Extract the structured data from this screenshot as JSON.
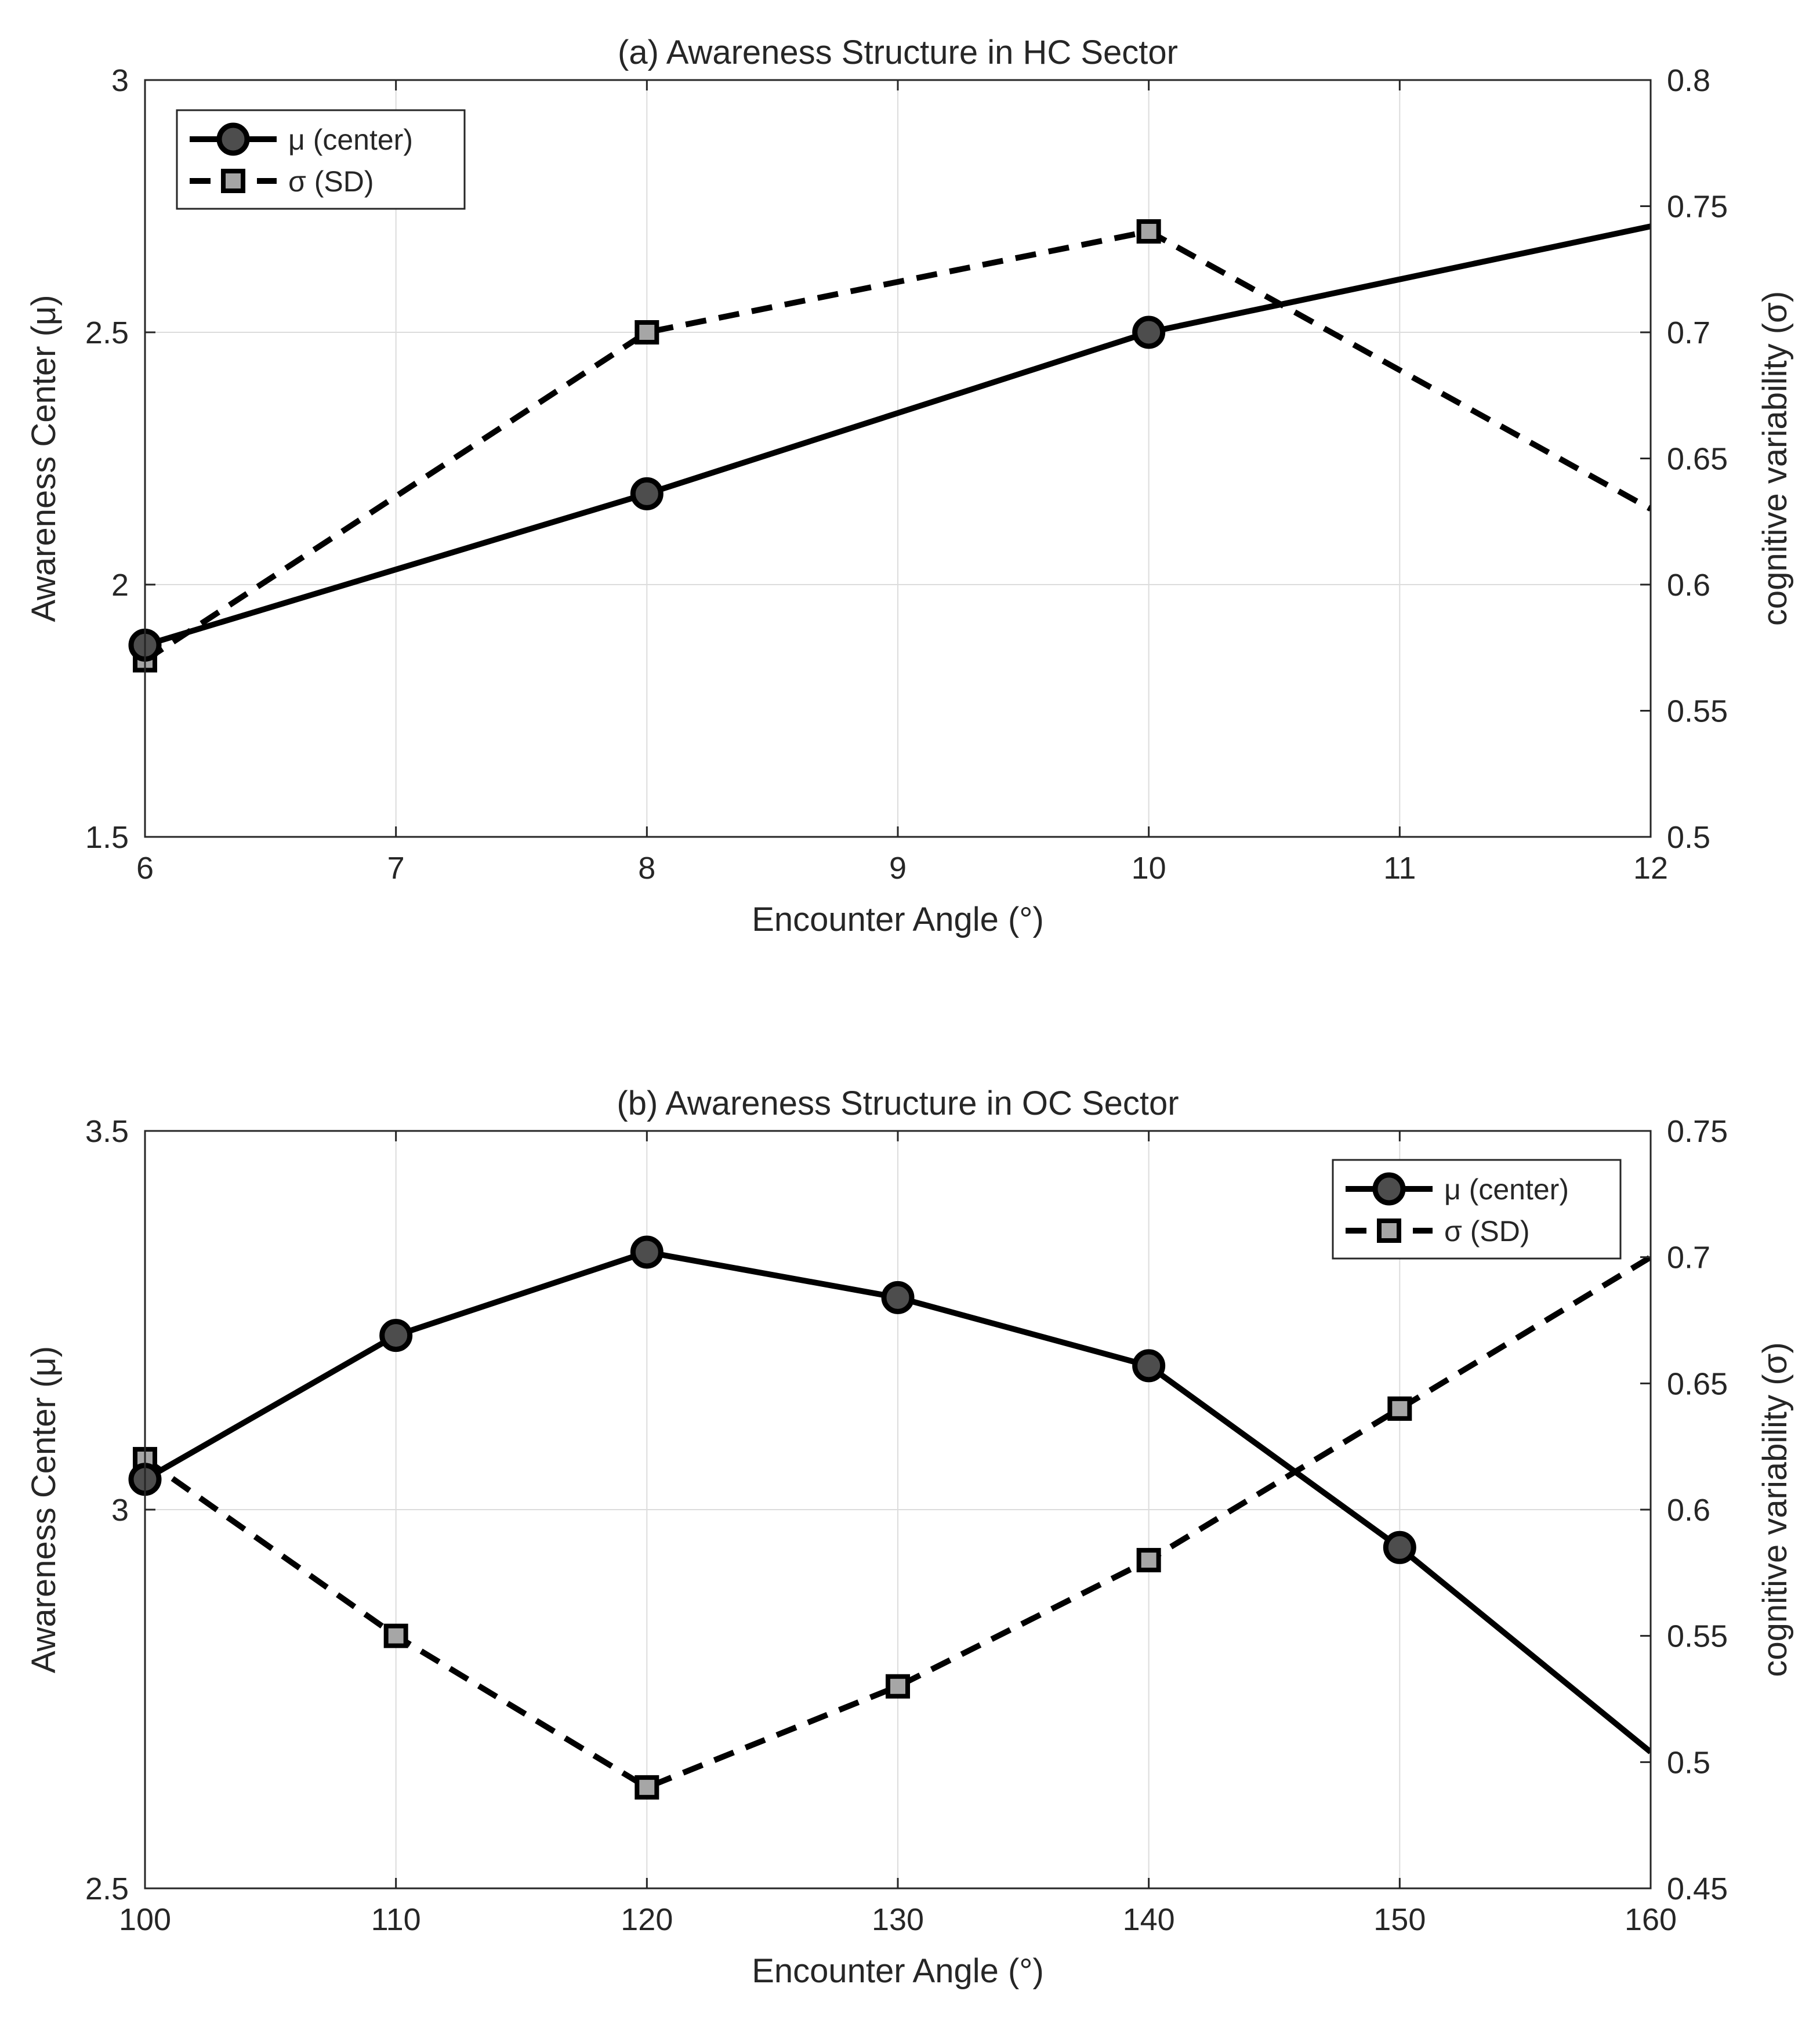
{
  "chart_data": [
    {
      "type": "line",
      "title": "(a) Awareness Structure in HC Sector",
      "xlabel": "Encounter Angle (°)",
      "ylabel_left": "Awareness Center (μ)",
      "ylabel_right": "cognitive variability (σ)",
      "xlim": [
        6,
        12
      ],
      "xticks": [
        6,
        7,
        8,
        9,
        10,
        11,
        12
      ],
      "ylim_left": [
        1.5,
        3
      ],
      "yticks_left": [
        1.5,
        2,
        2.5,
        3
      ],
      "ylim_right": [
        0.5,
        0.8
      ],
      "yticks_right": [
        0.5,
        0.55,
        0.6,
        0.65,
        0.7,
        0.75,
        0.8
      ],
      "grid": true,
      "legend_position": "top-left",
      "series": [
        {
          "name": "μ (center)",
          "axis": "left",
          "style": "solid",
          "marker": "circle",
          "x": [
            6,
            8,
            10,
            12
          ],
          "values": [
            1.88,
            2.18,
            2.5,
            2.71
          ],
          "marked": [
            true,
            true,
            true,
            false
          ]
        },
        {
          "name": "σ (SD)",
          "axis": "right",
          "style": "dashed",
          "marker": "square",
          "x": [
            6,
            8,
            10,
            12
          ],
          "values": [
            0.57,
            0.7,
            0.74,
            0.63
          ],
          "marked": [
            true,
            true,
            true,
            false
          ]
        }
      ]
    },
    {
      "type": "line",
      "title": "(b) Awareness Structure in OC Sector",
      "xlabel": "Encounter Angle (°)",
      "ylabel_left": "Awareness Center (μ)",
      "ylabel_right": "cognitive variability (σ)",
      "xlim": [
        100,
        160
      ],
      "xticks": [
        100,
        110,
        120,
        130,
        140,
        150,
        160
      ],
      "ylim_left": [
        2.5,
        3.5
      ],
      "yticks_left": [
        2.5,
        3,
        3.5
      ],
      "ylim_right": [
        0.45,
        0.75
      ],
      "yticks_right": [
        0.45,
        0.5,
        0.55,
        0.6,
        0.65,
        0.7,
        0.75
      ],
      "grid": true,
      "legend_position": "top-right",
      "series": [
        {
          "name": "μ (center)",
          "axis": "left",
          "style": "solid",
          "marker": "circle",
          "x": [
            100,
            110,
            120,
            130,
            140,
            150,
            160
          ],
          "values": [
            3.04,
            3.23,
            3.34,
            3.28,
            3.19,
            2.95,
            2.68
          ],
          "marked": [
            true,
            true,
            true,
            true,
            true,
            true,
            false
          ]
        },
        {
          "name": "σ (SD)",
          "axis": "right",
          "style": "dashed",
          "marker": "square",
          "x": [
            100,
            110,
            120,
            130,
            140,
            150,
            160
          ],
          "values": [
            0.62,
            0.55,
            0.49,
            0.53,
            0.58,
            0.64,
            0.7
          ],
          "marked": [
            true,
            true,
            true,
            true,
            true,
            true,
            false
          ]
        }
      ]
    }
  ]
}
